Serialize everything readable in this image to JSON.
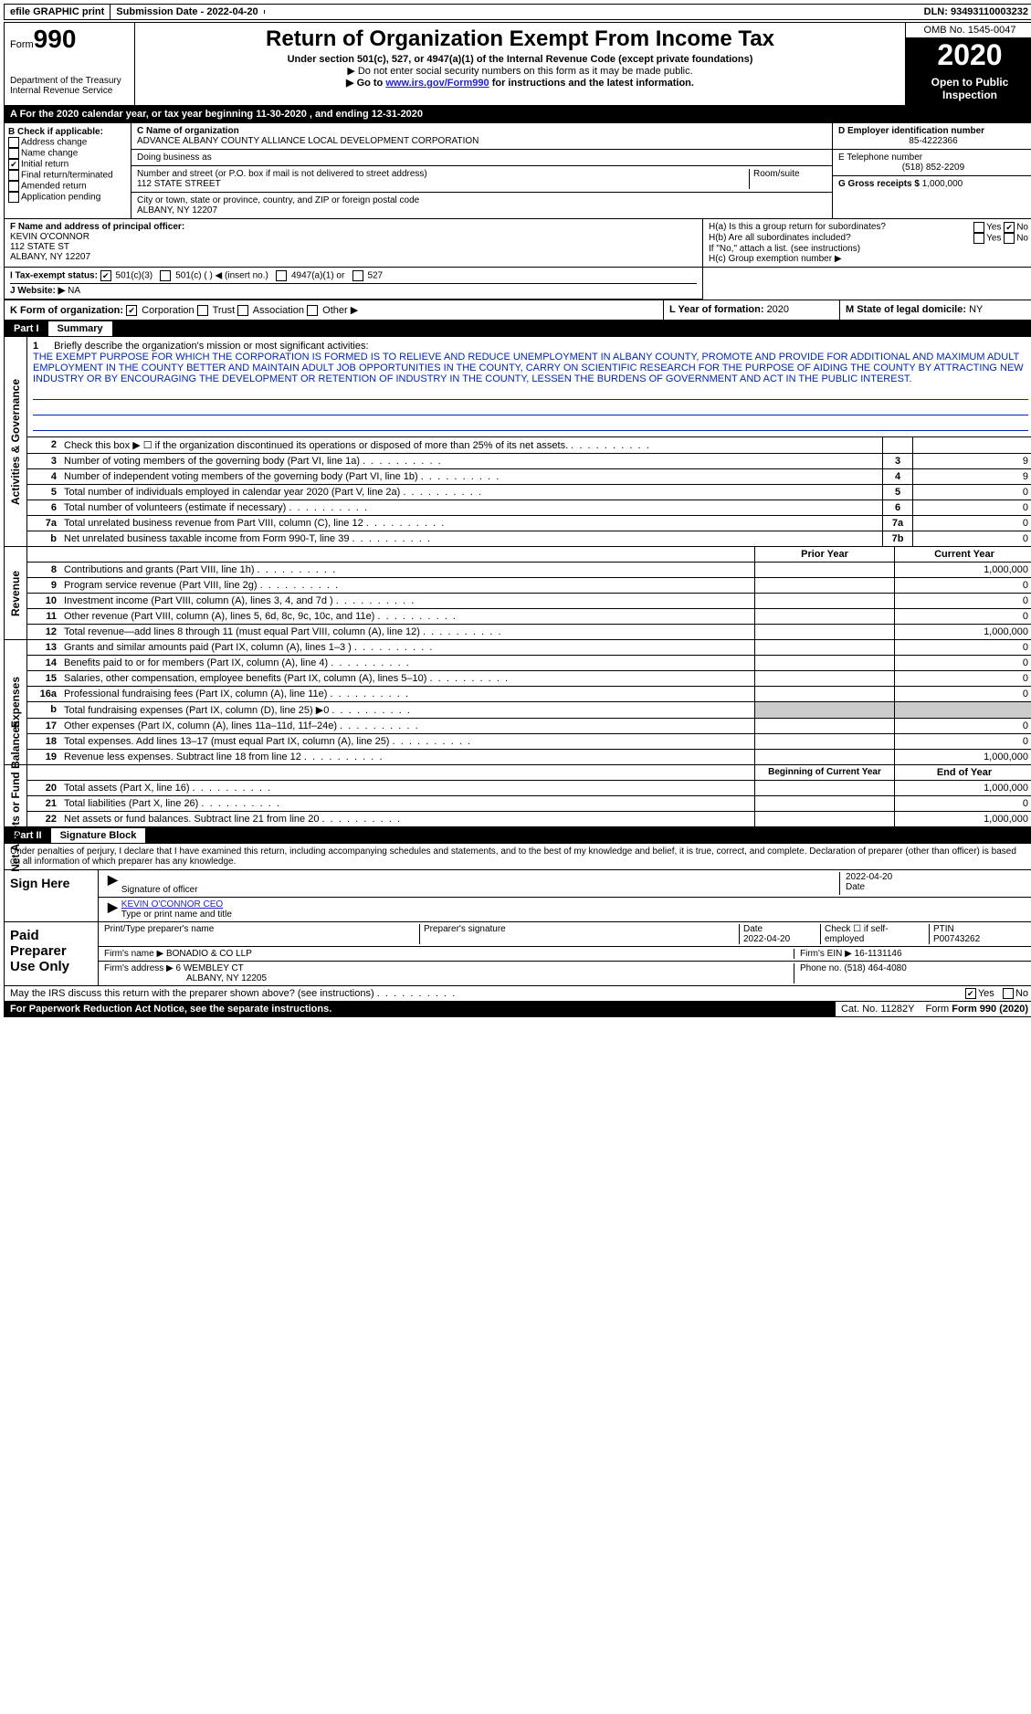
{
  "topbar": {
    "efile": "efile GRAPHIC print",
    "submission_label": "Submission Date - ",
    "submission_date": "2022-04-20",
    "dln_label": "DLN: ",
    "dln": "93493110003232"
  },
  "header": {
    "form_label": "Form",
    "form_num": "990",
    "dept": "Department of the Treasury\nInternal Revenue Service",
    "title": "Return of Organization Exempt From Income Tax",
    "sub1": "Under section 501(c), 527, or 4947(a)(1) of the Internal Revenue Code (except private foundations)",
    "sub2": "▶ Do not enter social security numbers on this form as it may be made public.",
    "sub3_a": "▶ Go to ",
    "sub3_link": "www.irs.gov/Form990",
    "sub3_b": " for instructions and the latest information.",
    "omb": "OMB No. 1545-0047",
    "year": "2020",
    "inspect": "Open to Public Inspection"
  },
  "period": {
    "prefix": "A For the 2020 calendar year, or tax year beginning ",
    "begin": "11-30-2020",
    "mid": " , and ending ",
    "end": "12-31-2020"
  },
  "boxB": {
    "label": "B Check if applicable:",
    "addr": "Address change",
    "name": "Name change",
    "init": "Initial return",
    "final": "Final return/terminated",
    "amend": "Amended return",
    "app": "Application pending"
  },
  "boxC": {
    "name_label": "C Name of organization",
    "org_name": "ADVANCE ALBANY COUNTY ALLIANCE LOCAL DEVELOPMENT CORPORATION",
    "dba_label": "Doing business as",
    "street_label": "Number and street (or P.O. box if mail is not delivered to street address)",
    "room_label": "Room/suite",
    "street": "112 STATE STREET",
    "city_label": "City or town, state or province, country, and ZIP or foreign postal code",
    "city": "ALBANY, NY  12207"
  },
  "boxD": {
    "label": "D Employer identification number",
    "val": "85-4222366"
  },
  "boxE": {
    "label": "E Telephone number",
    "val": "(518) 852-2209"
  },
  "boxG": {
    "label": "G Gross receipts $ ",
    "val": "1,000,000"
  },
  "boxF": {
    "label": "F  Name and address of principal officer:",
    "name": "KEVIN O'CONNOR",
    "addr1": "112 STATE ST",
    "addr2": "ALBANY, NY  12207"
  },
  "boxH": {
    "ha": "H(a)  Is this a group return for subordinates?",
    "hb": "H(b)  Are all subordinates included?",
    "hb_note": "If \"No,\" attach a list. (see instructions)",
    "hc": "H(c)  Group exemption number ▶",
    "yes": "Yes",
    "no": "No"
  },
  "boxI": {
    "label": "I  Tax-exempt status:",
    "c3": "501(c)(3)",
    "c": "501(c) (  ) ◀ (insert no.)",
    "a1": "4947(a)(1) or",
    "s527": "527"
  },
  "boxJ": {
    "label": "J  Website: ▶",
    "val": "NA"
  },
  "boxK": {
    "label": "K Form of organization:",
    "corp": "Corporation",
    "trust": "Trust",
    "assoc": "Association",
    "other": "Other ▶"
  },
  "boxL": {
    "label": "L Year of formation: ",
    "val": "2020"
  },
  "boxM": {
    "label": "M State of legal domicile: ",
    "val": "NY"
  },
  "part1": {
    "num": "Part I",
    "title": "Summary"
  },
  "mission": {
    "num": "1",
    "label": "Briefly describe the organization's mission or most significant activities:",
    "text": "THE EXEMPT PURPOSE FOR WHICH THE CORPORATION IS FORMED IS TO RELIEVE AND REDUCE UNEMPLOYMENT IN ALBANY COUNTY, PROMOTE AND PROVIDE FOR ADDITIONAL AND MAXIMUM ADULT EMPLOYMENT IN THE COUNTY BETTER AND MAINTAIN ADULT JOB OPPORTUNITIES IN THE COUNTY, CARRY ON SCIENTIFIC RESEARCH FOR THE PURPOSE OF AIDING THE COUNTY BY ATTRACTING NEW INDUSTRY OR BY ENCOURAGING THE DEVELOPMENT OR RETENTION OF INDUSTRY IN THE COUNTY, LESSEN THE BURDENS OF GOVERNMENT AND ACT IN THE PUBLIC INTEREST."
  },
  "lines_gov": [
    {
      "n": "2",
      "t": "Check this box ▶ ☐  if the organization discontinued its operations or disposed of more than 25% of its net assets.",
      "box": "",
      "v": ""
    },
    {
      "n": "3",
      "t": "Number of voting members of the governing body (Part VI, line 1a)",
      "box": "3",
      "v": "9"
    },
    {
      "n": "4",
      "t": "Number of independent voting members of the governing body (Part VI, line 1b)",
      "box": "4",
      "v": "9"
    },
    {
      "n": "5",
      "t": "Total number of individuals employed in calendar year 2020 (Part V, line 2a)",
      "box": "5",
      "v": "0"
    },
    {
      "n": "6",
      "t": "Total number of volunteers (estimate if necessary)",
      "box": "6",
      "v": "0"
    },
    {
      "n": "7a",
      "t": "Total unrelated business revenue from Part VIII, column (C), line 12",
      "box": "7a",
      "v": "0"
    },
    {
      "n": "b",
      "t": "Net unrelated business taxable income from Form 990-T, line 39",
      "box": "7b",
      "v": "0"
    }
  ],
  "col_hdr": {
    "prior": "Prior Year",
    "current": "Current Year"
  },
  "lines_rev": [
    {
      "n": "8",
      "t": "Contributions and grants (Part VIII, line 1h)",
      "p": "",
      "c": "1,000,000"
    },
    {
      "n": "9",
      "t": "Program service revenue (Part VIII, line 2g)",
      "p": "",
      "c": "0"
    },
    {
      "n": "10",
      "t": "Investment income (Part VIII, column (A), lines 3, 4, and 7d )",
      "p": "",
      "c": "0"
    },
    {
      "n": "11",
      "t": "Other revenue (Part VIII, column (A), lines 5, 6d, 8c, 9c, 10c, and 11e)",
      "p": "",
      "c": "0"
    },
    {
      "n": "12",
      "t": "Total revenue—add lines 8 through 11 (must equal Part VIII, column (A), line 12)",
      "p": "",
      "c": "1,000,000"
    }
  ],
  "lines_exp": [
    {
      "n": "13",
      "t": "Grants and similar amounts paid (Part IX, column (A), lines 1–3 )",
      "p": "",
      "c": "0"
    },
    {
      "n": "14",
      "t": "Benefits paid to or for members (Part IX, column (A), line 4)",
      "p": "",
      "c": "0"
    },
    {
      "n": "15",
      "t": "Salaries, other compensation, employee benefits (Part IX, column (A), lines 5–10)",
      "p": "",
      "c": "0"
    },
    {
      "n": "16a",
      "t": "Professional fundraising fees (Part IX, column (A), line 11e)",
      "p": "",
      "c": "0"
    },
    {
      "n": "b",
      "t": "Total fundraising expenses (Part IX, column (D), line 25) ▶0",
      "p": "shade",
      "c": "shade"
    },
    {
      "n": "17",
      "t": "Other expenses (Part IX, column (A), lines 11a–11d, 11f–24e)",
      "p": "",
      "c": "0"
    },
    {
      "n": "18",
      "t": "Total expenses. Add lines 13–17 (must equal Part IX, column (A), line 25)",
      "p": "",
      "c": "0"
    },
    {
      "n": "19",
      "t": "Revenue less expenses. Subtract line 18 from line 12",
      "p": "",
      "c": "1,000,000"
    }
  ],
  "col_hdr2": {
    "beg": "Beginning of Current Year",
    "end": "End of Year"
  },
  "lines_net": [
    {
      "n": "20",
      "t": "Total assets (Part X, line 16)",
      "p": "",
      "c": "1,000,000"
    },
    {
      "n": "21",
      "t": "Total liabilities (Part X, line 26)",
      "p": "",
      "c": "0"
    },
    {
      "n": "22",
      "t": "Net assets or fund balances. Subtract line 21 from line 20",
      "p": "",
      "c": "1,000,000"
    }
  ],
  "vtabs": {
    "gov": "Activities & Governance",
    "rev": "Revenue",
    "exp": "Expenses",
    "net": "Net Assets or Fund Balances"
  },
  "part2": {
    "num": "Part II",
    "title": "Signature Block"
  },
  "penalty": "Under penalties of perjury, I declare that I have examined this return, including accompanying schedules and statements, and to the best of my knowledge and belief, it is true, correct, and complete. Declaration of preparer (other than officer) is based on all information of which preparer has any knowledge.",
  "sign": {
    "here": "Sign Here",
    "sigoff": "Signature of officer",
    "date": "Date",
    "sigdate": "2022-04-20",
    "name": "KEVIN O'CONNOR CEO",
    "name_label": "Type or print name and title"
  },
  "paid": {
    "label": "Paid Preparer Use Only",
    "pname_l": "Print/Type preparer's name",
    "psig_l": "Preparer's signature",
    "pdate_l": "Date",
    "pdate": "2022-04-20",
    "check_l": "Check ☐ if self-employed",
    "ptin_l": "PTIN",
    "ptin": "P00743262",
    "firm_l": "Firm's name   ▶ ",
    "firm": "BONADIO & CO LLP",
    "ein_l": "Firm's EIN ▶ ",
    "ein": "16-1131146",
    "addr_l": "Firm's address ▶ ",
    "addr1": "6 WEMBLEY CT",
    "addr2": "ALBANY, NY  12205",
    "phone_l": "Phone no. ",
    "phone": "(518) 464-4080"
  },
  "discuss": {
    "t": "May the IRS discuss this return with the preparer shown above? (see instructions)",
    "yes": "Yes",
    "no": "No"
  },
  "footer": {
    "pra": "For Paperwork Reduction Act Notice, see the separate instructions.",
    "cat": "Cat. No. 11282Y",
    "form": "Form 990 (2020)"
  }
}
